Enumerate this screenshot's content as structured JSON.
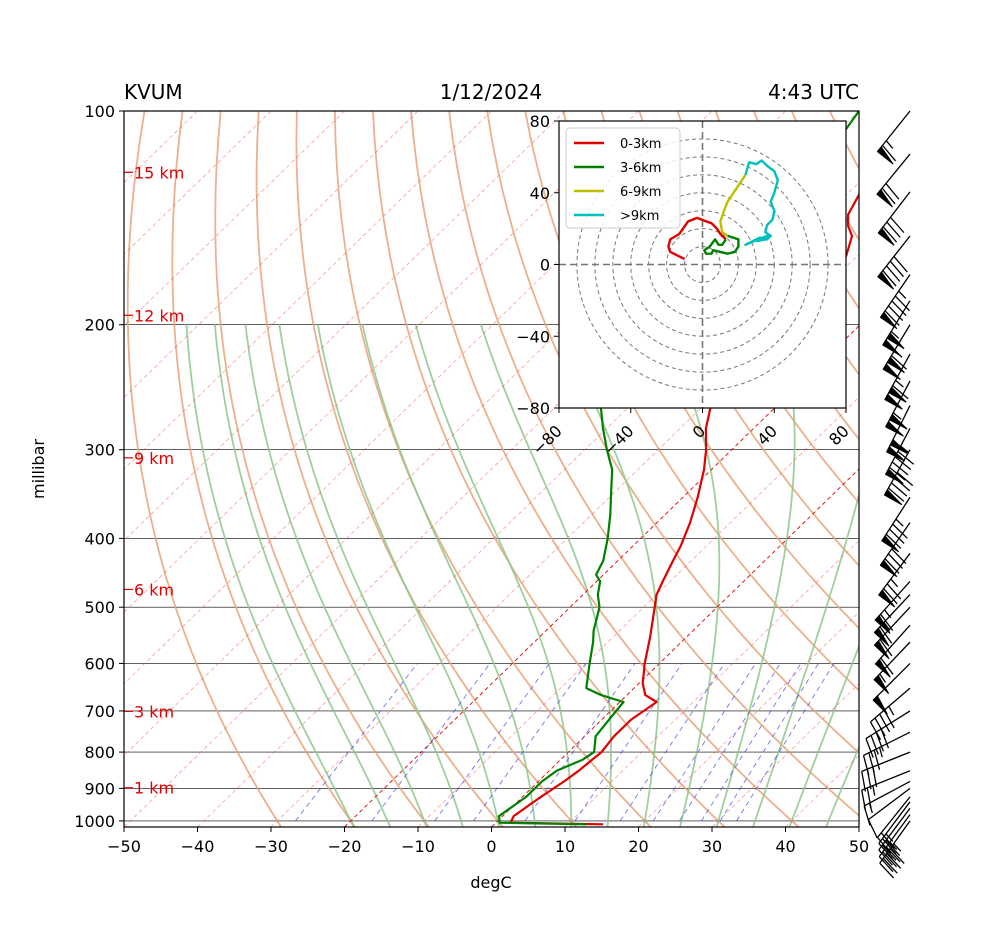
{
  "header": {
    "station": "KVUM",
    "date": "1/12/2024",
    "time": "4:43 UTC"
  },
  "colors": {
    "temperature": "#e00000",
    "dewpoint": "#008000",
    "dry_adiabat": "#e8a27a",
    "moist_adiabat": "#8cc88c",
    "mixing_ratio": "#4444ee",
    "isotherm": "#ff4444",
    "hodo_0_3": "#e00000",
    "hodo_3_6": "#008000",
    "hodo_6_9": "#bfbf00",
    "hodo_9_plus": "#00bfbf"
  },
  "chart_data": [
    {
      "type": "line",
      "subtype": "skew-T log-P",
      "title": "",
      "xlabel": "degC",
      "ylabel": "millibar",
      "xlim": [
        -50,
        50
      ],
      "ylim": [
        1020,
        100
      ],
      "y_scale": "log",
      "x_ticks": [
        "−50",
        "−40",
        "−30",
        "−20",
        "−10",
        "0",
        "10",
        "20",
        "30",
        "40",
        "50"
      ],
      "y_ticks": [
        "100",
        "200",
        "300",
        "400",
        "500",
        "600",
        "700",
        "800",
        "900",
        "1000"
      ],
      "height_labels": [
        {
          "text": "1 km",
          "p": 898
        },
        {
          "text": "3 km",
          "p": 701
        },
        {
          "text": "6 km",
          "p": 472
        },
        {
          "text": "9 km",
          "p": 308
        },
        {
          "text": "12 km",
          "p": 194
        },
        {
          "text": "15 km",
          "p": 122
        }
      ],
      "series": [
        {
          "key": "temperature",
          "points": [
            [
              1011,
              14.8
            ],
            [
              1006,
              2.0
            ],
            [
              985,
              1.5
            ],
            [
              925,
              2.5
            ],
            [
              880,
              3.5
            ],
            [
              850,
              4.0
            ],
            [
              800,
              4.5
            ],
            [
              760,
              4.0
            ],
            [
              720,
              4.0
            ],
            [
              680,
              5.0
            ],
            [
              665,
              2.5
            ],
            [
              640,
              0.5
            ],
            [
              600,
              -2.0
            ],
            [
              550,
              -5.0
            ],
            [
              500,
              -8.5
            ],
            [
              480,
              -10.0
            ],
            [
              460,
              -11.0
            ],
            [
              430,
              -12.5
            ],
            [
              410,
              -13.5
            ],
            [
              380,
              -15.5
            ],
            [
              350,
              -18.0
            ],
            [
              320,
              -21.0
            ],
            [
              300,
              -23.5
            ],
            [
              280,
              -26.5
            ],
            [
              260,
              -29.0
            ],
            [
              240,
              -31.5
            ],
            [
              226,
              -34.0
            ],
            [
              218,
              -33.5
            ],
            [
              213,
              -32.0
            ],
            [
              210,
              -29.0
            ],
            [
              205,
              -27.5
            ],
            [
              195,
              -27.0
            ],
            [
              182,
              -27.5
            ],
            [
              175,
              -29.5
            ],
            [
              168,
              -30.5
            ],
            [
              160,
              -31.5
            ],
            [
              150,
              -33.5
            ],
            [
              145,
              -35.5
            ],
            [
              140,
              -37.0
            ],
            [
              130,
              -38.5
            ],
            [
              122,
              -41.0
            ],
            [
              116,
              -43.5
            ],
            [
              110,
              -44.0
            ],
            [
              100,
              -45.5
            ]
          ]
        },
        {
          "key": "dewpoint",
          "points": [
            [
              1011,
              12.5
            ],
            [
              1006,
              0.5
            ],
            [
              995,
              0.0
            ],
            [
              985,
              -0.5
            ],
            [
              925,
              0.5
            ],
            [
              880,
              0.5
            ],
            [
              850,
              1.0
            ],
            [
              820,
              3.0
            ],
            [
              800,
              3.5
            ],
            [
              760,
              1.5
            ],
            [
              720,
              1.0
            ],
            [
              680,
              0.5
            ],
            [
              665,
              -3.5
            ],
            [
              650,
              -6.5
            ],
            [
              600,
              -9.5
            ],
            [
              560,
              -12.0
            ],
            [
              540,
              -13.5
            ],
            [
              500,
              -16.0
            ],
            [
              480,
              -18.0
            ],
            [
              460,
              -19.5
            ],
            [
              450,
              -21.0
            ],
            [
              430,
              -22.0
            ],
            [
              400,
              -24.5
            ],
            [
              370,
              -27.5
            ],
            [
              340,
              -31.0
            ],
            [
              320,
              -33.5
            ],
            [
              300,
              -37.0
            ],
            [
              280,
              -40.5
            ],
            [
              260,
              -44.0
            ],
            [
              240,
              -48.0
            ],
            [
              230,
              -49.0
            ],
            [
              220,
              -48.5
            ],
            [
              210,
              -46.0
            ],
            [
              205,
              -43.5
            ],
            [
              200,
              -44.5
            ],
            [
              195,
              -44.5
            ],
            [
              188,
              -43.0
            ],
            [
              182,
              -44.0
            ],
            [
              175,
              -44.0
            ],
            [
              172,
              -42.5
            ],
            [
              168,
              -43.0
            ],
            [
              162,
              -42.5
            ],
            [
              155,
              -42.0
            ],
            [
              145,
              -43.0
            ],
            [
              140,
              -43.5
            ],
            [
              132,
              -44.0
            ],
            [
              125,
              -45.5
            ],
            [
              115,
              -48.0
            ],
            [
              108,
              -49.0
            ],
            [
              100,
              -50.0
            ]
          ]
        }
      ],
      "wind_barbs": [
        {
          "p": 1000,
          "u": 25,
          "v": 35
        },
        {
          "p": 980,
          "u": 22,
          "v": 30
        },
        {
          "p": 960,
          "u": 18,
          "v": 24
        },
        {
          "p": 940,
          "u": 15,
          "v": 20
        },
        {
          "p": 925,
          "u": 12,
          "v": 15
        },
        {
          "p": 900,
          "u": 8,
          "v": 6
        },
        {
          "p": 880,
          "u": 15,
          "v": 8
        },
        {
          "p": 850,
          "u": 25,
          "v": 10
        },
        {
          "p": 800,
          "u": 30,
          "v": 12
        },
        {
          "p": 750,
          "u": 30,
          "v": 15
        },
        {
          "p": 700,
          "u": 35,
          "v": 22
        },
        {
          "p": 650,
          "u": 35,
          "v": 30
        },
        {
          "p": 600,
          "u": 35,
          "v": 35
        },
        {
          "p": 560,
          "u": 38,
          "v": 40
        },
        {
          "p": 530,
          "u": 40,
          "v": 45
        },
        {
          "p": 500,
          "u": 42,
          "v": 45
        },
        {
          "p": 480,
          "u": 45,
          "v": 48
        },
        {
          "p": 460,
          "u": 45,
          "v": 50
        },
        {
          "p": 420,
          "u": 45,
          "v": 60
        },
        {
          "p": 380,
          "u": 45,
          "v": 65
        },
        {
          "p": 350,
          "u": 45,
          "v": 70
        },
        {
          "p": 300,
          "u": 45,
          "v": 80
        },
        {
          "p": 280,
          "u": 45,
          "v": 85
        },
        {
          "p": 260,
          "u": 45,
          "v": 90
        },
        {
          "p": 240,
          "u": 50,
          "v": 95
        },
        {
          "p": 220,
          "u": 55,
          "v": 100
        },
        {
          "p": 200,
          "u": 60,
          "v": 100
        },
        {
          "p": 185,
          "u": 55,
          "v": 90
        },
        {
          "p": 170,
          "u": 55,
          "v": 80
        },
        {
          "p": 150,
          "u": 55,
          "v": 70
        },
        {
          "p": 130,
          "u": 50,
          "v": 65
        },
        {
          "p": 115,
          "u": 45,
          "v": 55
        },
        {
          "p": 100,
          "u": 40,
          "v": 50
        }
      ]
    },
    {
      "type": "line",
      "subtype": "hodograph",
      "title": "",
      "xlim": [
        -80,
        80
      ],
      "ylim": [
        -80,
        80
      ],
      "x_ticks": [
        "−80",
        "−40",
        "0",
        "40",
        "80"
      ],
      "y_ticks": [
        "80",
        "40",
        "0",
        "−40",
        "−80"
      ],
      "rings": [
        10,
        20,
        30,
        40,
        50,
        60,
        70
      ],
      "legend_position": "top-left",
      "series": [
        {
          "name": "0-3km",
          "key": "hodo_0_3",
          "points": [
            [
              -10,
              3
            ],
            [
              -18,
              7
            ],
            [
              -19,
              10
            ],
            [
              -18,
              14
            ],
            [
              -13,
              17
            ],
            [
              -8,
              24
            ],
            [
              -3,
              26
            ],
            [
              2,
              24
            ],
            [
              5,
              23
            ],
            [
              8,
              20
            ],
            [
              10,
              17
            ],
            [
              13,
              14
            ]
          ]
        },
        {
          "name": "3-6km",
          "key": "hodo_3_6",
          "points": [
            [
              13,
              14
            ],
            [
              11,
              11
            ],
            [
              9,
              11
            ],
            [
              7,
              14
            ],
            [
              4,
              10
            ],
            [
              1,
              8
            ],
            [
              2,
              6
            ],
            [
              5,
              6
            ],
            [
              6,
              8
            ],
            [
              14,
              6
            ],
            [
              18,
              7
            ],
            [
              20,
              10
            ],
            [
              20,
              14
            ],
            [
              14,
              16
            ]
          ]
        },
        {
          "name": "6-9km",
          "key": "hodo_6_9",
          "points": [
            [
              14,
              16
            ],
            [
              11,
              18
            ],
            [
              10,
              24
            ],
            [
              12,
              30
            ],
            [
              14,
              35
            ],
            [
              20,
              44
            ],
            [
              24,
              50
            ]
          ]
        },
        {
          "name": ">9km",
          "key": "hodo_9_plus",
          "points": [
            [
              24,
              50
            ],
            [
              26,
              57
            ],
            [
              30,
              56
            ],
            [
              33,
              58
            ],
            [
              36,
              55
            ],
            [
              40,
              52
            ],
            [
              42,
              47
            ],
            [
              40,
              40
            ],
            [
              38,
              35
            ],
            [
              40,
              30
            ],
            [
              39,
              25
            ],
            [
              36,
              22
            ],
            [
              35,
              18
            ],
            [
              38,
              16
            ],
            [
              36,
              14
            ],
            [
              32,
              15
            ],
            [
              26,
              12
            ],
            [
              24,
              11
            ],
            [
              36,
              16
            ],
            [
              35,
              14
            ],
            [
              30,
              13
            ]
          ]
        }
      ]
    }
  ]
}
